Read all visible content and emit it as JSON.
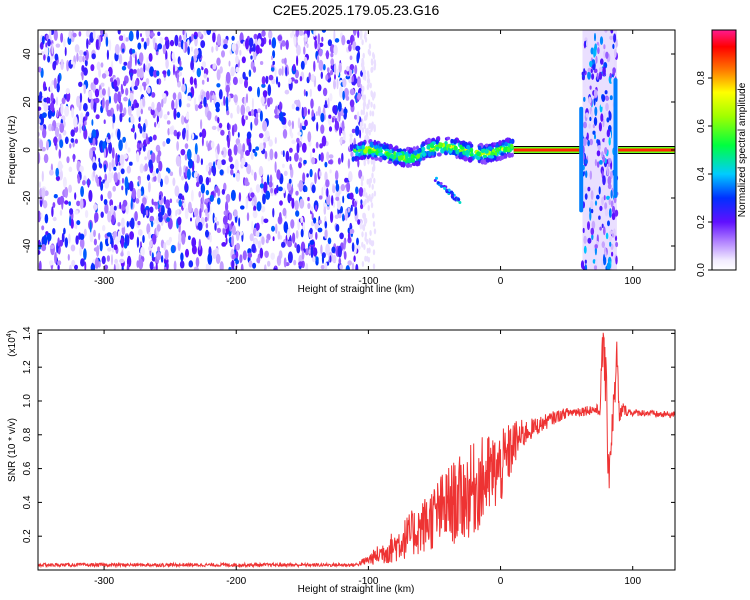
{
  "title": "C2E5.2025.179.05.23.G16",
  "chart_data": [
    {
      "type": "heatmap",
      "xlabel": "Height of straight line (km)",
      "ylabel": "Frequency (Hz)",
      "xlim": [
        -350,
        132
      ],
      "ylim": [
        -50,
        50
      ],
      "xticks": [
        -300,
        -200,
        -100,
        0,
        100
      ],
      "yticks": [
        -40,
        -20,
        0,
        20,
        40
      ],
      "grid": false,
      "colorbar": {
        "label": "Normalized spectral amplitude",
        "range": [
          0,
          1
        ],
        "ticks": [
          "0.0",
          "0.2",
          "0.4",
          "0.6",
          "0.8"
        ]
      },
      "regions": [
        {
          "name": "noise-field",
          "x": [
            -350,
            -105
          ],
          "freq": [
            -50,
            50
          ],
          "amplitude": 0.3
        },
        {
          "name": "signal-trace",
          "x": [
            -110,
            10
          ],
          "freq_center": 0,
          "amplitude": 0.55
        },
        {
          "name": "signal-branch",
          "x": [
            -50,
            -30
          ],
          "freq": [
            -22,
            -12
          ],
          "amplitude": 0.3
        },
        {
          "name": "carrier-line",
          "x": [
            10,
            132
          ],
          "freq_center": 0,
          "amplitude": 1.0
        },
        {
          "name": "noise-band",
          "x": [
            62,
            88
          ],
          "freq": [
            -50,
            50
          ],
          "amplitude": 0.35
        }
      ]
    },
    {
      "type": "line",
      "xlabel": "Height of straight line (km)",
      "ylabel": "SNR (10 * v/v)",
      "scale_label": "(x10",
      "scale_exp": "4",
      "scale_suffix": ")",
      "xlim": [
        -350,
        132
      ],
      "ylim": [
        0,
        1.42
      ],
      "xticks": [
        -300,
        -200,
        -100,
        0,
        100
      ],
      "yticks": [
        "0.2",
        "0.4",
        "0.6",
        "0.8",
        "1.0",
        "1.2",
        "1.4"
      ],
      "grid": false,
      "series": [
        {
          "color": "#ee3333",
          "x": [
            -350,
            -250,
            -150,
            -110,
            -100,
            -95,
            -90,
            -80,
            -70,
            -60,
            -50,
            -40,
            -30,
            -20,
            -10,
            0,
            5,
            10,
            20,
            30,
            40,
            50,
            60,
            70,
            75,
            78,
            82,
            85,
            88,
            90,
            92,
            95,
            100,
            110,
            120,
            132
          ],
          "y": [
            0.03,
            0.03,
            0.03,
            0.03,
            0.06,
            0.08,
            0.1,
            0.14,
            0.2,
            0.25,
            0.32,
            0.38,
            0.42,
            0.48,
            0.55,
            0.6,
            0.66,
            0.75,
            0.82,
            0.86,
            0.9,
            0.93,
            0.94,
            0.95,
            0.94,
            1.4,
            0.6,
            0.9,
            1.25,
            0.88,
            0.96,
            0.94,
            0.93,
            0.93,
            0.92,
            0.92
          ],
          "amplitude": [
            0.01,
            0.01,
            0.01,
            0.01,
            0.03,
            0.05,
            0.07,
            0.1,
            0.13,
            0.16,
            0.2,
            0.24,
            0.26,
            0.28,
            0.26,
            0.22,
            0.2,
            0.14,
            0.07,
            0.05,
            0.04,
            0.03,
            0.03,
            0.03,
            0.04,
            0.2,
            0.2,
            0.1,
            0.15,
            0.06,
            0.04,
            0.03,
            0.02,
            0.02,
            0.02,
            0.02
          ]
        }
      ]
    }
  ]
}
